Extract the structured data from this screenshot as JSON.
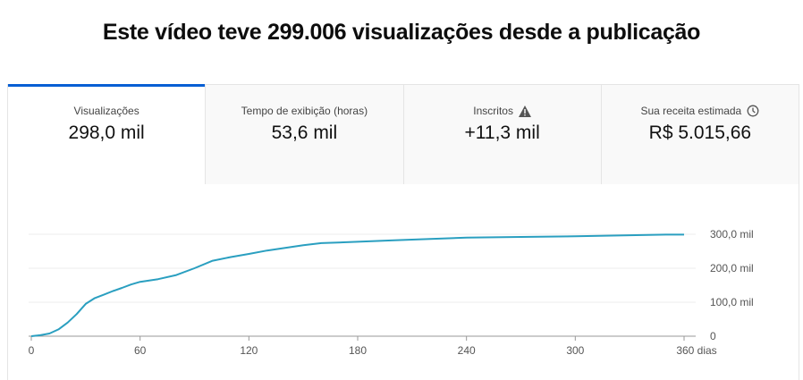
{
  "title": "Este vídeo teve 299.006 visualizações desde a publicação",
  "tabs": [
    {
      "label": "Visualizações",
      "value": "298,0 mil",
      "active": true
    },
    {
      "label": "Tempo de exibição (horas)",
      "value": "53,6 mil"
    },
    {
      "label": "Inscritos",
      "value": "+11,3 mil",
      "icon": "warning-icon"
    },
    {
      "label": "Sua receita estimada",
      "value": "R$ 5.015,66",
      "icon": "clock-icon"
    }
  ],
  "chart_data": {
    "type": "line",
    "x_ticks": [
      "0",
      "60",
      "120",
      "180",
      "240",
      "300",
      "360 dias"
    ],
    "y_ticks": [
      "0",
      "100,0 mil",
      "200,0 mil",
      "300,0 mil"
    ],
    "xlim": [
      0,
      360
    ],
    "ylim": [
      0,
      300000
    ],
    "grid": true,
    "color": "#2a9fc0",
    "x": [
      0,
      5,
      10,
      15,
      20,
      25,
      30,
      35,
      40,
      45,
      50,
      55,
      60,
      70,
      80,
      90,
      100,
      110,
      120,
      130,
      140,
      150,
      160,
      180,
      200,
      220,
      240,
      270,
      300,
      330,
      350,
      360
    ],
    "y": [
      0,
      3000,
      8000,
      20000,
      40000,
      65000,
      95000,
      112000,
      122000,
      133000,
      142000,
      152000,
      160000,
      168000,
      180000,
      200000,
      222000,
      233000,
      242000,
      252000,
      260000,
      268000,
      274000,
      278000,
      282000,
      286000,
      290000,
      292000,
      294000,
      297000,
      299000,
      299000
    ]
  }
}
